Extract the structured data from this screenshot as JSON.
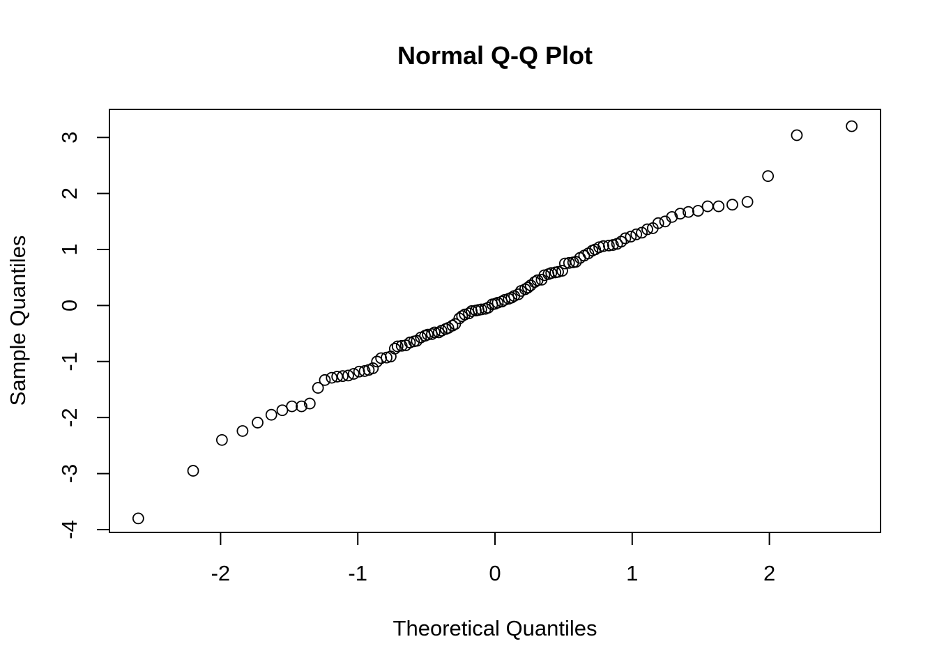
{
  "chart_data": {
    "type": "scatter",
    "title": "Normal Q-Q Plot",
    "xlabel": "Theoretical Quantiles",
    "ylabel": "Sample Quantiles",
    "xlim": [
      -2.81,
      2.81
    ],
    "ylim": [
      -4.05,
      3.5
    ],
    "xticks": [
      -2,
      -1,
      0,
      1,
      2
    ],
    "yticks": [
      -4,
      -3,
      -2,
      -1,
      0,
      1,
      2,
      3
    ],
    "grid": false,
    "legend": "none",
    "marker": "open-circle",
    "series": [
      {
        "x": [
          -2.6,
          -2.2,
          -1.99,
          -1.84,
          -1.73,
          -1.63,
          -1.55,
          -1.48,
          -1.41,
          -1.35,
          -1.29,
          -1.24,
          -1.19,
          -1.15,
          -1.11,
          -1.07,
          -1.03,
          -0.99,
          -0.95,
          -0.92,
          -0.89,
          -0.86,
          -0.83,
          -0.79,
          -0.76,
          -0.73,
          -0.71,
          -0.68,
          -0.65,
          -0.62,
          -0.59,
          -0.57,
          -0.54,
          -0.51,
          -0.49,
          -0.46,
          -0.44,
          -0.41,
          -0.39,
          -0.36,
          -0.34,
          -0.31,
          -0.29,
          -0.26,
          -0.24,
          -0.22,
          -0.19,
          -0.17,
          -0.14,
          -0.12,
          -0.1,
          -0.07,
          -0.05,
          -0.02,
          0.0,
          0.02,
          0.05,
          0.07,
          0.1,
          0.12,
          0.14,
          0.17,
          0.19,
          0.22,
          0.24,
          0.26,
          0.29,
          0.31,
          0.34,
          0.36,
          0.39,
          0.41,
          0.44,
          0.46,
          0.49,
          0.51,
          0.54,
          0.57,
          0.59,
          0.62,
          0.65,
          0.68,
          0.71,
          0.73,
          0.76,
          0.79,
          0.83,
          0.86,
          0.89,
          0.92,
          0.95,
          0.99,
          1.03,
          1.07,
          1.11,
          1.15,
          1.19,
          1.24,
          1.29,
          1.35,
          1.41,
          1.48,
          1.55,
          1.63,
          1.73,
          1.84,
          1.99,
          2.2,
          2.6
        ],
        "y": [
          -3.8,
          -2.95,
          -2.4,
          -2.24,
          -2.09,
          -1.95,
          -1.87,
          -1.8,
          -1.8,
          -1.75,
          -1.47,
          -1.33,
          -1.29,
          -1.27,
          -1.26,
          -1.25,
          -1.22,
          -1.18,
          -1.17,
          -1.15,
          -1.12,
          -1.0,
          -0.94,
          -0.93,
          -0.91,
          -0.77,
          -0.73,
          -0.72,
          -0.71,
          -0.66,
          -0.64,
          -0.63,
          -0.57,
          -0.54,
          -0.52,
          -0.51,
          -0.48,
          -0.48,
          -0.45,
          -0.42,
          -0.4,
          -0.36,
          -0.33,
          -0.23,
          -0.19,
          -0.16,
          -0.14,
          -0.1,
          -0.09,
          -0.08,
          -0.07,
          -0.06,
          -0.04,
          0.02,
          0.03,
          0.05,
          0.07,
          0.1,
          0.12,
          0.14,
          0.17,
          0.2,
          0.26,
          0.29,
          0.32,
          0.36,
          0.42,
          0.45,
          0.46,
          0.54,
          0.56,
          0.58,
          0.59,
          0.6,
          0.62,
          0.75,
          0.76,
          0.77,
          0.78,
          0.85,
          0.89,
          0.93,
          0.98,
          1.0,
          1.04,
          1.06,
          1.07,
          1.08,
          1.1,
          1.14,
          1.2,
          1.23,
          1.27,
          1.3,
          1.36,
          1.38,
          1.47,
          1.5,
          1.58,
          1.64,
          1.67,
          1.69,
          1.77,
          1.77,
          1.8,
          1.85,
          2.31,
          3.04,
          3.2
        ]
      }
    ]
  }
}
